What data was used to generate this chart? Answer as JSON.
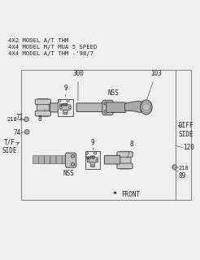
{
  "bg_color": "#f0f0f0",
  "title_lines": [
    "4X2 MODEL A/T THM",
    "4X4 MODEL M/T MUA 5 SPEED",
    "4X4 MODEL A/T THM -'98/7"
  ],
  "label_fs": 5.5,
  "lw_line": 0.5
}
